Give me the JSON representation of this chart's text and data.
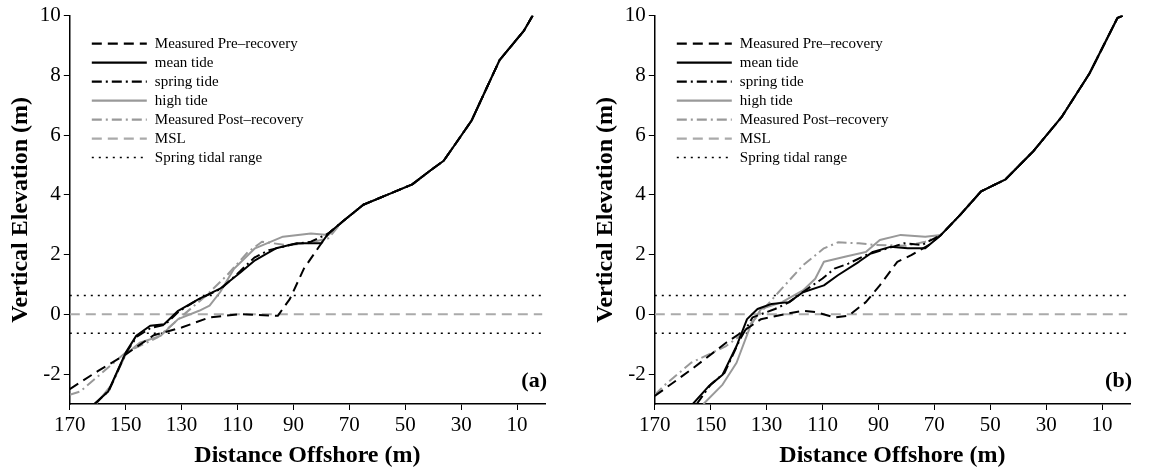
{
  "chart_data": [
    {
      "type": "line",
      "xlabel": "Distance Offshore (m)",
      "ylabel": "Vertical Elevation (m)",
      "xlim": [
        170,
        0
      ],
      "xticks": [
        170,
        150,
        130,
        110,
        90,
        70,
        50,
        30,
        10
      ],
      "ylim": [
        -3,
        10
      ],
      "yticks": [
        -2,
        0,
        2,
        4,
        6,
        8,
        10
      ],
      "legend": "top left",
      "annotations": [
        "(a)"
      ],
      "series": [
        {
          "name": "Measured Pre–recovery",
          "color": "#000000",
          "line_style": "dashed",
          "x": [
            170,
            160,
            150,
            140,
            130,
            120,
            108.75,
            95.6,
            91.25,
            86.25,
            80,
            77.5,
            72.5,
            65,
            56.25,
            47.5,
            41.25,
            36.25,
            31.25,
            26.25,
            21.25,
            16.25,
            7.5,
            4.4
          ],
          "values": [
            -2.5,
            -1.9,
            -1.34,
            -0.7,
            -0.44,
            -0.1,
            0.01,
            -0.05,
            0.52,
            1.53,
            2.38,
            2.7,
            3.1,
            3.67,
            4.01,
            4.35,
            4.8,
            5.14,
            5.81,
            6.49,
            7.5,
            8.51,
            9.5,
            10
          ]
        },
        {
          "name": "mean tide",
          "color": "#000000",
          "line_style": "solid",
          "x": [
            161.25,
            156.25,
            150,
            146.25,
            141.25,
            136.25,
            131.25,
            123.75,
            116.25,
            108.75,
            103.75,
            96.25,
            88.75,
            80,
            77.5,
            72.5,
            65,
            56.25,
            47.5,
            41.25,
            36.25,
            31.25,
            26.25,
            21.25,
            16.25,
            7.5,
            4.4
          ],
          "values": [
            -3,
            -2.58,
            -1.28,
            -0.72,
            -0.38,
            -0.33,
            0.12,
            0.52,
            0.86,
            1.42,
            1.81,
            2.21,
            2.38,
            2.38,
            2.71,
            3.1,
            3.67,
            4.01,
            4.35,
            4.8,
            5.14,
            5.81,
            6.49,
            7.5,
            8.51,
            9.5,
            10
          ]
        },
        {
          "name": "spring tide",
          "color": "#000000",
          "line_style": "dashdot",
          "x": [
            161,
            156,
            150,
            146,
            141,
            136,
            131,
            124,
            116,
            109,
            104,
            98.75,
            90,
            83.75,
            77.5,
            72.5,
            65,
            56.25,
            47.5,
            41.25,
            36.25,
            31.25,
            26.25,
            21.25,
            16.25,
            7.5,
            4.4
          ],
          "values": [
            -3,
            -2.55,
            -1.3,
            -0.75,
            -0.45,
            -0.35,
            0.1,
            0.5,
            0.85,
            1.45,
            1.9,
            2.15,
            2.35,
            2.43,
            2.71,
            3.1,
            3.67,
            4.01,
            4.35,
            4.8,
            5.14,
            5.81,
            6.49,
            7.5,
            8.51,
            9.5,
            10
          ]
        },
        {
          "name": "high tide",
          "color": "#999999",
          "line_style": "solid",
          "x": [
            160.6,
            155,
            150,
            145,
            137.5,
            131.25,
            123.75,
            120,
            116.25,
            111.25,
            103.75,
            93.75,
            83.75,
            77.5,
            72.5,
            65,
            56.25,
            47.5,
            41.25,
            36.25,
            31.25,
            26.25,
            21.25,
            16.25,
            7.5,
            4.4
          ],
          "values": [
            -3,
            -2.35,
            -1.34,
            -0.95,
            -0.72,
            -0.16,
            0.12,
            0.29,
            0.74,
            1.53,
            2.21,
            2.6,
            2.71,
            2.66,
            3.1,
            3.67,
            4.01,
            4.35,
            4.8,
            5.14,
            5.81,
            6.49,
            7.5,
            8.51,
            9.5,
            10
          ]
        },
        {
          "name": "Measured Post–recovery",
          "color": "#999999",
          "line_style": "dashdot",
          "x": [
            170,
            166.25,
            150,
            138.75,
            132.5,
            121.25,
            113.75,
            106.25,
            101.25,
            92.5,
            85,
            77.5,
            72.5,
            65,
            56.25,
            47.5,
            41.25,
            36.25,
            31.25,
            26.25,
            21.25,
            16.25,
            7.5,
            4.4
          ],
          "values": [
            -2.69,
            -2.58,
            -1.28,
            -0.78,
            -0.27,
            0.63,
            1.31,
            2.09,
            2.43,
            2.32,
            2.38,
            2.55,
            3.1,
            3.67,
            4.01,
            4.35,
            4.8,
            5.14,
            5.81,
            6.49,
            7.5,
            8.51,
            9.5,
            10
          ]
        },
        {
          "name": "MSL",
          "color": "#aaaaaa",
          "line_style": "dashed",
          "x": [
            170,
            1
          ],
          "values": [
            0,
            0
          ]
        },
        {
          "name": "Spring tidal range",
          "color": "#000000",
          "line_style": "dotted",
          "x": [
            170,
            1
          ],
          "values": [
            0.63,
            0.63
          ]
        },
        {
          "color": "#000000",
          "line_style": "dotted",
          "x": [
            170,
            1
          ],
          "values": [
            -0.63,
            -0.63
          ]
        }
      ]
    },
    {
      "type": "line",
      "xlabel": "Distance Offshore (m)",
      "ylabel": "Vertical Elevation (m)",
      "xlim": [
        170,
        0
      ],
      "xticks": [
        170,
        150,
        130,
        110,
        90,
        70,
        50,
        30,
        10
      ],
      "ylim": [
        -3,
        10
      ],
      "yticks": [
        -2,
        0,
        2,
        4,
        6,
        8,
        10
      ],
      "legend": "top left",
      "annotations": [
        "(b)"
      ],
      "series": [
        {
          "name": "Measured Pre–recovery",
          "color": "#000000",
          "line_style": "dashed",
          "x": [
            170,
            157,
            144.5,
            132,
            123.25,
            117,
            112,
            105.75,
            100.75,
            94.5,
            89.5,
            83.25,
            78.25,
            72,
            67.6,
            60.75,
            53.25,
            44.5,
            34.5,
            24.5,
            14.5,
            4.5,
            2.6
          ],
          "values": [
            -2.73,
            -1.85,
            -0.95,
            -0.16,
            0.01,
            0.12,
            0.07,
            -0.1,
            -0.05,
            0.41,
            0.97,
            1.76,
            1.98,
            2.32,
            2.66,
            3.33,
            4.12,
            4.52,
            5.47,
            6.6,
            8.06,
            9.92,
            10
          ]
        },
        {
          "name": "mean tide",
          "color": "#000000",
          "line_style": "solid",
          "x": [
            156.4,
            150.75,
            145.75,
            140.75,
            137,
            133.25,
            128.25,
            122,
            117,
            109.5,
            104.5,
            97,
            92,
            85.75,
            79.5,
            73.25,
            67.6,
            60.75,
            53.25,
            44.5,
            34.5,
            24.5,
            14.5,
            4.5,
            2.6
          ],
          "values": [
            -3,
            -2.41,
            -2.02,
            -1.06,
            -0.16,
            0.18,
            0.35,
            0.41,
            0.74,
            0.97,
            1.31,
            1.76,
            2.09,
            2.26,
            2.21,
            2.21,
            2.66,
            3.33,
            4.12,
            4.52,
            5.47,
            6.6,
            8.06,
            9.92,
            10
          ]
        },
        {
          "name": "spring tide",
          "color": "#000000",
          "line_style": "dashdot",
          "x": [
            155,
            150,
            145,
            139.5,
            135,
            127,
            122,
            117,
            110,
            105.75,
            100.75,
            94.5,
            87,
            80.75,
            74.5,
            67.6,
            60.75,
            53.25,
            44.5,
            34.5,
            24.5,
            14.5,
            4.5,
            2.6
          ],
          "values": [
            -3,
            -2.35,
            -1.95,
            -0.83,
            -0.1,
            0.18,
            0.4,
            0.75,
            1.2,
            1.53,
            1.7,
            1.98,
            2.2,
            2.38,
            2.32,
            2.66,
            3.33,
            4.12,
            4.52,
            5.47,
            6.6,
            8.06,
            9.92,
            10
          ]
        },
        {
          "name": "high tide",
          "color": "#999999",
          "line_style": "solid",
          "x": [
            152.6,
            145.75,
            140.75,
            135.75,
            132,
            124.5,
            117,
            112.6,
            109.5,
            102,
            94.5,
            89.5,
            82,
            73.25,
            67.6,
            60.75,
            53.25,
            44.5,
            34.5,
            24.5,
            14.5,
            4.5,
            2.6
          ],
          "values": [
            -3,
            -2.35,
            -1.62,
            -0.38,
            0.18,
            0.41,
            0.8,
            1.19,
            1.76,
            1.93,
            2.09,
            2.49,
            2.66,
            2.6,
            2.66,
            3.33,
            4.12,
            4.52,
            5.47,
            6.6,
            8.06,
            9.92,
            10
          ]
        },
        {
          "name": "Measured Post–recovery",
          "color": "#999999",
          "line_style": "dashdot",
          "x": [
            170,
            167,
            157,
            144.5,
            139.5,
            133.25,
            125.75,
            117,
            109.5,
            104.5,
            97,
            90.75,
            80,
            73.25,
            67.6,
            60.75,
            53.25,
            44.5,
            34.5,
            24.5,
            14.5,
            4.5,
            2.6
          ],
          "values": [
            -2.7,
            -2.41,
            -1.62,
            -1.06,
            -0.72,
            -0.05,
            0.74,
            1.64,
            2.21,
            2.41,
            2.38,
            2.32,
            2.3,
            2.43,
            2.66,
            3.33,
            4.12,
            4.52,
            5.47,
            6.6,
            8.06,
            9.92,
            10
          ]
        },
        {
          "name": "MSL",
          "color": "#aaaaaa",
          "line_style": "dashed",
          "x": [
            170,
            1
          ],
          "values": [
            0,
            0
          ]
        },
        {
          "name": "Spring tidal range",
          "color": "#000000",
          "line_style": "dotted",
          "x": [
            170,
            1
          ],
          "values": [
            0.63,
            0.63
          ]
        },
        {
          "color": "#000000",
          "line_style": "dotted",
          "x": [
            170,
            1
          ],
          "values": [
            -0.63,
            -0.63
          ]
        }
      ]
    }
  ]
}
